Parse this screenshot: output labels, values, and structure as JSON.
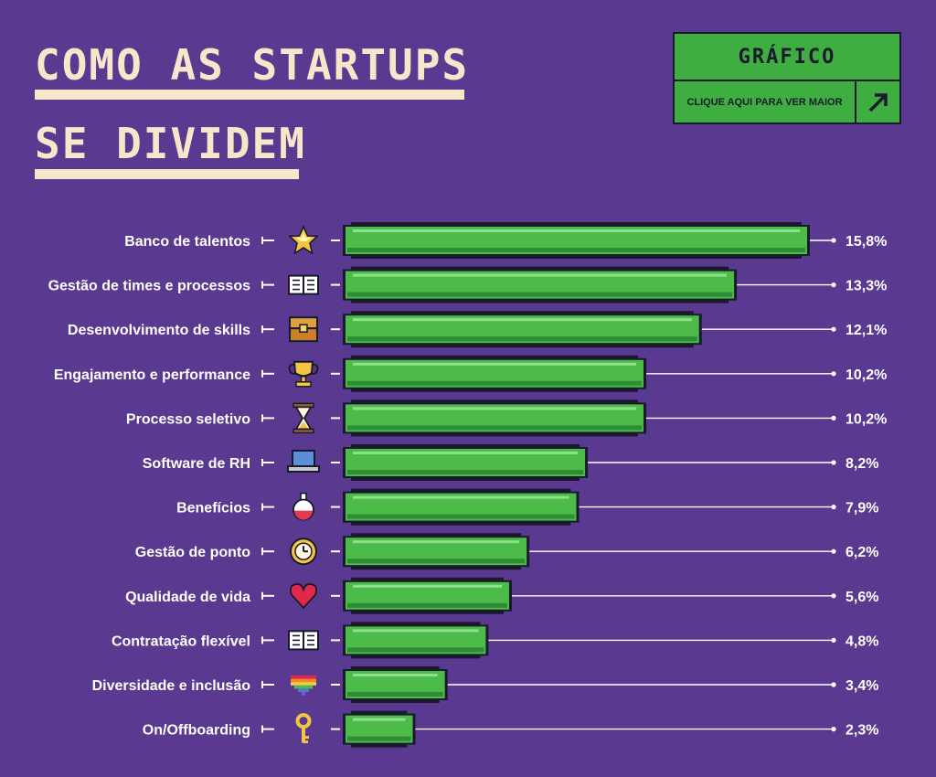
{
  "header": {
    "title_line1": "COMO AS STARTUPS",
    "title_line2": "SE DIVIDEM"
  },
  "cta": {
    "title": "GRÁFICO",
    "link_text": "CLIQUE AQUI PARA VER MAIOR",
    "arrow_icon": "arrow-up-right-icon"
  },
  "colors": {
    "background": "#5a3990",
    "bar": "#4cbb4a",
    "bar_dark": "#2e8c34",
    "bar_highlight": "#8fe08a",
    "outline": "#1a1a2e",
    "title": "#f7e6c9",
    "cta_bg": "#3fae41"
  },
  "chart_data": {
    "type": "bar",
    "orientation": "horizontal",
    "xlim": [
      0,
      15.8
    ],
    "grid": false,
    "legend": "none",
    "categories": [
      "Banco de talentos",
      "Gestão de times e processos",
      "Desenvolvimento de skills",
      "Engajamento e performance",
      "Processo seletivo",
      "Software de RH",
      "Benefícios",
      "Gestão de ponto",
      "Qualidade de vida",
      "Contratação flexível",
      "Diversidade e inclusão",
      "On/Offboarding"
    ],
    "values": [
      15.8,
      13.3,
      12.1,
      10.2,
      10.2,
      8.2,
      7.9,
      6.2,
      5.6,
      4.8,
      3.4,
      2.3
    ],
    "value_labels": [
      "15,8%",
      "13,3%",
      "12,1%",
      "10,2%",
      "10,2%",
      "8,2%",
      "7,9%",
      "6,2%",
      "5,6%",
      "4,8%",
      "3,4%",
      "2,3%"
    ],
    "icons": [
      "star-icon",
      "book-icon",
      "chest-icon",
      "trophy-icon",
      "hourglass-icon",
      "laptop-icon",
      "potion-icon",
      "clock-icon",
      "heart-icon",
      "book-icon",
      "rainbow-heart-icon",
      "key-icon"
    ]
  }
}
